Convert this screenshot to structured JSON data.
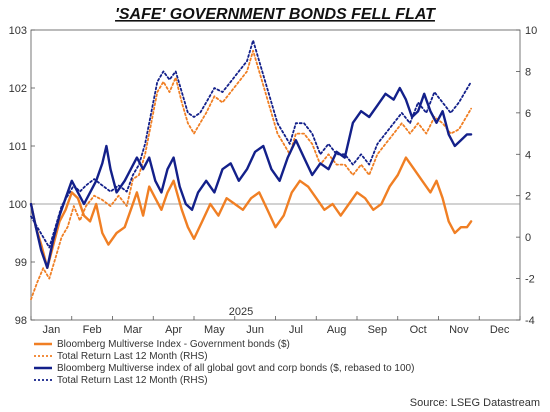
{
  "chart_data": {
    "type": "line",
    "title": "'SAFE' GOVERNMENT BONDS FELL FLAT",
    "year_label": "2025",
    "source": "Source: LSEG Datastream",
    "x_ticks": [
      "Jan",
      "Feb",
      "Mar",
      "Apr",
      "May",
      "Jun",
      "Jul",
      "Aug",
      "Sep",
      "Oct",
      "Nov",
      "Dec"
    ],
    "x_range": [
      0,
      12
    ],
    "left_axis": {
      "ylim": [
        98,
        103
      ],
      "ticks": [
        "98",
        "99",
        "100",
        "101",
        "102",
        "103"
      ]
    },
    "right_axis": {
      "ylim": [
        -4,
        10
      ],
      "ticks": [
        "-4",
        "-2",
        "0",
        "2",
        "4",
        "6",
        "8",
        "10"
      ]
    },
    "reference_line": 100,
    "grid": false,
    "colors": {
      "orange": "#F07F24",
      "navy": "#13208A",
      "ref": "#888888"
    },
    "series": [
      {
        "name": "Bloomberg Multiverse Index - Government bonds ($)",
        "axis": "left",
        "style": "solid",
        "color": "#F07F24",
        "points": [
          [
            0,
            100
          ],
          [
            0.12,
            99.6
          ],
          [
            0.25,
            99.3
          ],
          [
            0.4,
            98.9
          ],
          [
            0.55,
            99.3
          ],
          [
            0.7,
            99.7
          ],
          [
            0.85,
            99.9
          ],
          [
            1.0,
            100.2
          ],
          [
            1.15,
            100.1
          ],
          [
            1.3,
            99.8
          ],
          [
            1.45,
            99.7
          ],
          [
            1.6,
            100.0
          ],
          [
            1.75,
            99.5
          ],
          [
            1.9,
            99.3
          ],
          [
            2.1,
            99.5
          ],
          [
            2.3,
            99.6
          ],
          [
            2.45,
            99.9
          ],
          [
            2.6,
            100.2
          ],
          [
            2.75,
            99.8
          ],
          [
            2.9,
            100.3
          ],
          [
            3.05,
            100.1
          ],
          [
            3.2,
            99.9
          ],
          [
            3.35,
            100.2
          ],
          [
            3.5,
            100.4
          ],
          [
            3.7,
            99.9
          ],
          [
            3.85,
            99.6
          ],
          [
            4.0,
            99.4
          ],
          [
            4.2,
            99.7
          ],
          [
            4.4,
            100.0
          ],
          [
            4.6,
            99.8
          ],
          [
            4.8,
            100.1
          ],
          [
            5.0,
            100.0
          ],
          [
            5.2,
            99.9
          ],
          [
            5.4,
            100.1
          ],
          [
            5.6,
            100.2
          ],
          [
            5.8,
            99.9
          ],
          [
            6.0,
            99.6
          ],
          [
            6.2,
            99.8
          ],
          [
            6.4,
            100.2
          ],
          [
            6.6,
            100.4
          ],
          [
            6.8,
            100.3
          ],
          [
            7.0,
            100.1
          ],
          [
            7.2,
            99.9
          ],
          [
            7.4,
            100.0
          ],
          [
            7.6,
            99.8
          ],
          [
            7.8,
            100.0
          ],
          [
            8.0,
            100.2
          ],
          [
            8.2,
            100.1
          ],
          [
            8.4,
            99.9
          ],
          [
            8.6,
            100.0
          ],
          [
            8.8,
            100.3
          ],
          [
            9.0,
            100.5
          ],
          [
            9.2,
            100.8
          ],
          [
            9.4,
            100.6
          ],
          [
            9.6,
            100.4
          ],
          [
            9.8,
            100.2
          ],
          [
            9.95,
            100.4
          ],
          [
            10.1,
            100.1
          ],
          [
            10.25,
            99.7
          ],
          [
            10.4,
            99.5
          ],
          [
            10.55,
            99.6
          ],
          [
            10.7,
            99.6
          ],
          [
            10.8,
            99.7
          ]
        ]
      },
      {
        "name": "Total Return Last 12 Month (RHS)",
        "axis": "right",
        "style": "dotted",
        "color": "#F07F24",
        "points": [
          [
            0,
            -3.0
          ],
          [
            0.15,
            -2.2
          ],
          [
            0.3,
            -1.5
          ],
          [
            0.45,
            -2.0
          ],
          [
            0.6,
            -1.0
          ],
          [
            0.75,
            0.0
          ],
          [
            0.9,
            0.5
          ],
          [
            1.05,
            1.5
          ],
          [
            1.2,
            0.8
          ],
          [
            1.35,
            1.5
          ],
          [
            1.55,
            2.0
          ],
          [
            1.75,
            1.8
          ],
          [
            1.95,
            1.5
          ],
          [
            2.15,
            2.0
          ],
          [
            2.35,
            1.5
          ],
          [
            2.5,
            2.8
          ],
          [
            2.65,
            3.0
          ],
          [
            2.8,
            4.0
          ],
          [
            2.95,
            5.5
          ],
          [
            3.1,
            7.0
          ],
          [
            3.25,
            7.5
          ],
          [
            3.4,
            7.0
          ],
          [
            3.55,
            7.7
          ],
          [
            3.7,
            6.5
          ],
          [
            3.85,
            5.5
          ],
          [
            4.0,
            5.0
          ],
          [
            4.15,
            5.5
          ],
          [
            4.3,
            6.0
          ],
          [
            4.5,
            6.8
          ],
          [
            4.7,
            6.5
          ],
          [
            4.9,
            7.0
          ],
          [
            5.1,
            7.5
          ],
          [
            5.3,
            8.0
          ],
          [
            5.45,
            9.0
          ],
          [
            5.6,
            8.0
          ],
          [
            5.75,
            7.0
          ],
          [
            5.9,
            6.0
          ],
          [
            6.05,
            5.0
          ],
          [
            6.2,
            4.5
          ],
          [
            6.35,
            4.0
          ],
          [
            6.5,
            5.0
          ],
          [
            6.7,
            5.0
          ],
          [
            6.9,
            4.5
          ],
          [
            7.1,
            3.5
          ],
          [
            7.3,
            4.0
          ],
          [
            7.5,
            3.5
          ],
          [
            7.7,
            3.5
          ],
          [
            7.9,
            3.0
          ],
          [
            8.1,
            3.5
          ],
          [
            8.3,
            3.0
          ],
          [
            8.5,
            4.0
          ],
          [
            8.7,
            4.5
          ],
          [
            8.9,
            5.0
          ],
          [
            9.1,
            5.5
          ],
          [
            9.3,
            5.0
          ],
          [
            9.5,
            5.5
          ],
          [
            9.7,
            5.0
          ],
          [
            9.9,
            5.8
          ],
          [
            10.1,
            5.5
          ],
          [
            10.3,
            5.0
          ],
          [
            10.5,
            5.2
          ],
          [
            10.65,
            5.7
          ],
          [
            10.8,
            6.2
          ]
        ]
      },
      {
        "name": "Bloomberg Multiverse index of all global govt and corp bonds ($, rebased to 100)",
        "axis": "left",
        "style": "solid",
        "color": "#13208A",
        "points": [
          [
            0,
            100
          ],
          [
            0.12,
            99.6
          ],
          [
            0.25,
            99.2
          ],
          [
            0.4,
            98.9
          ],
          [
            0.55,
            99.4
          ],
          [
            0.7,
            99.8
          ],
          [
            0.85,
            100.1
          ],
          [
            1.0,
            100.4
          ],
          [
            1.15,
            100.2
          ],
          [
            1.3,
            100.0
          ],
          [
            1.45,
            100.2
          ],
          [
            1.6,
            100.4
          ],
          [
            1.75,
            100.7
          ],
          [
            1.85,
            101.0
          ],
          [
            1.95,
            100.6
          ],
          [
            2.1,
            100.2
          ],
          [
            2.3,
            100.4
          ],
          [
            2.45,
            100.6
          ],
          [
            2.6,
            100.8
          ],
          [
            2.75,
            100.6
          ],
          [
            2.9,
            100.8
          ],
          [
            3.05,
            100.4
          ],
          [
            3.2,
            100.2
          ],
          [
            3.35,
            100.6
          ],
          [
            3.5,
            100.8
          ],
          [
            3.65,
            100.3
          ],
          [
            3.8,
            100.0
          ],
          [
            3.95,
            99.9
          ],
          [
            4.1,
            100.2
          ],
          [
            4.3,
            100.4
          ],
          [
            4.5,
            100.2
          ],
          [
            4.7,
            100.6
          ],
          [
            4.9,
            100.7
          ],
          [
            5.1,
            100.4
          ],
          [
            5.3,
            100.6
          ],
          [
            5.5,
            100.9
          ],
          [
            5.7,
            101.0
          ],
          [
            5.9,
            100.6
          ],
          [
            6.1,
            100.4
          ],
          [
            6.3,
            100.8
          ],
          [
            6.5,
            101.1
          ],
          [
            6.7,
            100.8
          ],
          [
            6.9,
            100.5
          ],
          [
            7.1,
            100.7
          ],
          [
            7.3,
            100.6
          ],
          [
            7.5,
            100.9
          ],
          [
            7.7,
            100.8
          ],
          [
            7.9,
            101.4
          ],
          [
            8.1,
            101.6
          ],
          [
            8.3,
            101.5
          ],
          [
            8.5,
            101.7
          ],
          [
            8.7,
            101.9
          ],
          [
            8.9,
            101.8
          ],
          [
            9.05,
            102.0
          ],
          [
            9.2,
            101.8
          ],
          [
            9.35,
            101.5
          ],
          [
            9.5,
            101.6
          ],
          [
            9.65,
            101.9
          ],
          [
            9.8,
            101.6
          ],
          [
            9.95,
            101.4
          ],
          [
            10.1,
            101.6
          ],
          [
            10.25,
            101.2
          ],
          [
            10.4,
            101.0
          ],
          [
            10.55,
            101.1
          ],
          [
            10.7,
            101.2
          ],
          [
            10.8,
            101.2
          ]
        ]
      },
      {
        "name": "Total Return Last 12 Month (RHS)",
        "axis": "right",
        "style": "dotted",
        "color": "#13208A",
        "points": [
          [
            0,
            1.0
          ],
          [
            0.15,
            0.5
          ],
          [
            0.3,
            0.0
          ],
          [
            0.45,
            -0.5
          ],
          [
            0.6,
            0.5
          ],
          [
            0.75,
            1.5
          ],
          [
            0.9,
            2.0
          ],
          [
            1.05,
            2.5
          ],
          [
            1.2,
            2.2
          ],
          [
            1.35,
            2.5
          ],
          [
            1.55,
            2.8
          ],
          [
            1.75,
            2.5
          ],
          [
            1.95,
            2.2
          ],
          [
            2.15,
            2.5
          ],
          [
            2.35,
            2.2
          ],
          [
            2.5,
            3.0
          ],
          [
            2.65,
            3.5
          ],
          [
            2.8,
            4.5
          ],
          [
            2.95,
            6.0
          ],
          [
            3.1,
            7.5
          ],
          [
            3.25,
            8.0
          ],
          [
            3.4,
            7.6
          ],
          [
            3.55,
            8.0
          ],
          [
            3.7,
            7.0
          ],
          [
            3.85,
            6.0
          ],
          [
            4.0,
            5.8
          ],
          [
            4.15,
            6.0
          ],
          [
            4.3,
            6.5
          ],
          [
            4.5,
            7.2
          ],
          [
            4.7,
            7.0
          ],
          [
            4.9,
            7.5
          ],
          [
            5.1,
            8.0
          ],
          [
            5.3,
            8.5
          ],
          [
            5.45,
            9.5
          ],
          [
            5.6,
            8.5
          ],
          [
            5.75,
            7.5
          ],
          [
            5.9,
            6.5
          ],
          [
            6.05,
            5.5
          ],
          [
            6.2,
            5.0
          ],
          [
            6.35,
            4.5
          ],
          [
            6.5,
            5.5
          ],
          [
            6.7,
            5.5
          ],
          [
            6.9,
            5.0
          ],
          [
            7.1,
            4.0
          ],
          [
            7.3,
            4.5
          ],
          [
            7.5,
            4.0
          ],
          [
            7.7,
            4.0
          ],
          [
            7.9,
            3.5
          ],
          [
            8.1,
            4.0
          ],
          [
            8.3,
            3.5
          ],
          [
            8.5,
            4.5
          ],
          [
            8.7,
            5.0
          ],
          [
            8.9,
            5.5
          ],
          [
            9.1,
            6.0
          ],
          [
            9.3,
            5.5
          ],
          [
            9.5,
            6.5
          ],
          [
            9.7,
            6.0
          ],
          [
            9.9,
            7.0
          ],
          [
            10.1,
            6.5
          ],
          [
            10.3,
            6.0
          ],
          [
            10.5,
            6.5
          ],
          [
            10.65,
            7.0
          ],
          [
            10.8,
            7.5
          ]
        ]
      }
    ]
  },
  "legend": [
    {
      "label": "Bloomberg Multiverse Index - Government bonds ($)",
      "color": "#F07F24",
      "style": "solid"
    },
    {
      "label": "Total Return Last 12 Month (RHS)",
      "color": "#F07F24",
      "style": "dotted"
    },
    {
      "label": "Bloomberg Multiverse index of all global govt and corp bonds ($, rebased to 100)",
      "color": "#13208A",
      "style": "solid"
    },
    {
      "label": "Total Return Last 12 Month (RHS)",
      "color": "#13208A",
      "style": "dotted"
    }
  ]
}
